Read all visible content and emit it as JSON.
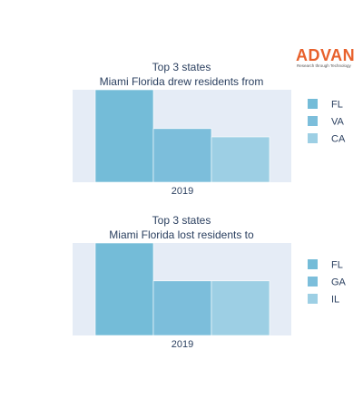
{
  "logo": {
    "wordmark": "ADVAN",
    "tagline": "Research through Technology"
  },
  "chart_data": [
    {
      "type": "bar",
      "title_lines": [
        "Top 3 states",
        "Miami Florida drew residents from"
      ],
      "categories": [
        "2019"
      ],
      "series": [
        {
          "name": "FL",
          "values": [
            100
          ],
          "color": "#74bcd8"
        },
        {
          "name": "VA",
          "values": [
            58
          ],
          "color": "#7cbedb"
        },
        {
          "name": "CA",
          "values": [
            49
          ],
          "color": "#9dcfe4"
        }
      ],
      "ylim": [
        0,
        100
      ],
      "legend_position": "right",
      "grid": false
    },
    {
      "type": "bar",
      "title_lines": [
        "Top 3 states",
        "Miami Florida lost residents to"
      ],
      "categories": [
        "2019"
      ],
      "series": [
        {
          "name": "FL",
          "values": [
            100
          ],
          "color": "#74bcd8"
        },
        {
          "name": "GA",
          "values": [
            59
          ],
          "color": "#7cbedb"
        },
        {
          "name": "IL",
          "values": [
            59
          ],
          "color": "#9dcfe4"
        }
      ],
      "ylim": [
        0,
        100
      ],
      "legend_position": "right",
      "grid": false
    }
  ]
}
